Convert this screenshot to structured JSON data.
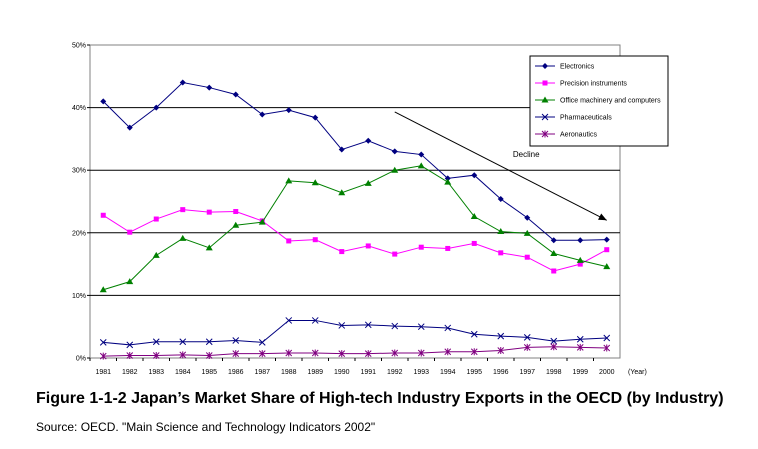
{
  "figure": {
    "title": "Figure 1-1-2  Japan’s Market Share of High-tech Industry Exports in the OECD (by Industry)",
    "source": "Source: OECD. \"Main Science and Technology Indicators 2002\""
  },
  "chart_data": {
    "type": "line",
    "x": [
      "1981",
      "1982",
      "1983",
      "1984",
      "1985",
      "1986",
      "1987",
      "1988",
      "1989",
      "1990",
      "1991",
      "1992",
      "1993",
      "1994",
      "1995",
      "1996",
      "1997",
      "1998",
      "1999",
      "2000"
    ],
    "xunit": "(Year)",
    "ylim": [
      0,
      50
    ],
    "yticks": [
      0,
      10,
      20,
      30,
      40,
      50
    ],
    "ytick_labels": [
      "0%",
      "10%",
      "20%",
      "30%",
      "40%",
      "50%"
    ],
    "grid": true,
    "legend_position": "top-right",
    "series": [
      {
        "name": "Electronics",
        "color": "#000080",
        "marker": "diamond",
        "values": [
          41.0,
          36.8,
          40.0,
          44.0,
          43.2,
          42.1,
          38.9,
          39.6,
          38.4,
          33.3,
          34.7,
          33.0,
          32.5,
          28.7,
          29.2,
          25.4,
          22.4,
          18.8,
          18.8,
          18.9
        ]
      },
      {
        "name": "Precision instruments",
        "color": "#ff00ff",
        "marker": "square",
        "values": [
          22.8,
          20.1,
          22.2,
          23.7,
          23.3,
          23.4,
          21.9,
          18.7,
          18.9,
          17.0,
          17.9,
          16.6,
          17.7,
          17.5,
          18.3,
          16.8,
          16.1,
          13.9,
          15.0,
          17.3
        ]
      },
      {
        "name": "Office machinery and computers",
        "color": "#008000",
        "marker": "triangle",
        "values": [
          10.9,
          12.2,
          16.4,
          19.1,
          17.6,
          21.2,
          21.7,
          28.3,
          28.0,
          26.4,
          27.9,
          30.0,
          30.7,
          28.1,
          22.6,
          20.2,
          19.9,
          16.7,
          15.6,
          14.6
        ]
      },
      {
        "name": "Pharmaceuticals",
        "color": "#000080",
        "marker": "x",
        "values": [
          2.5,
          2.1,
          2.6,
          2.6,
          2.6,
          2.8,
          2.5,
          6.0,
          6.0,
          5.2,
          5.3,
          5.1,
          5.0,
          4.8,
          3.8,
          3.5,
          3.3,
          2.7,
          3.0,
          3.2
        ]
      },
      {
        "name": "Aeronautics",
        "color": "#800080",
        "marker": "star",
        "values": [
          0.3,
          0.4,
          0.4,
          0.5,
          0.4,
          0.7,
          0.7,
          0.8,
          0.8,
          0.7,
          0.7,
          0.8,
          0.8,
          1.0,
          1.0,
          1.2,
          1.7,
          1.8,
          1.7,
          1.6
        ]
      }
    ],
    "annotations": [
      {
        "text": "Decline",
        "arrow_from": {
          "x": "1992",
          "y": 39.3
        },
        "arrow_to": {
          "x": "2000",
          "y": 22.0
        }
      }
    ]
  }
}
